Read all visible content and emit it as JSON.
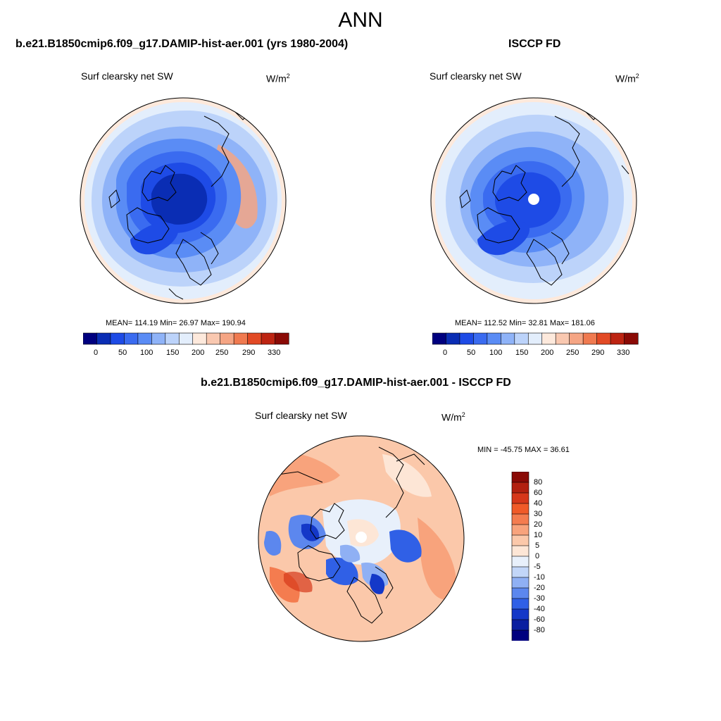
{
  "figure": {
    "title": "ANN"
  },
  "panels": [
    {
      "id": "model",
      "title": "b.e21.B1850cmip6.f09_g17.DAMIP-hist-aer.001 (yrs 1980-2004)",
      "variable": "Surf clearsky net SW",
      "units_base": "W/m",
      "units_exp": "2",
      "stats_text": "MEAN= 114.19  Min=  26.97  Max= 190.94",
      "colorbar_labels": [
        "0",
        "50",
        "100",
        "150",
        "200",
        "250",
        "290",
        "330"
      ],
      "colors": [
        "#00007f",
        "#0a2db4",
        "#1e4be6",
        "#3a6bf0",
        "#5a8cf5",
        "#8fb3f8",
        "#bcd3fa",
        "#e3eefc",
        "#fde9dc",
        "#f9c8b0",
        "#f5a584",
        "#f07a50",
        "#e24a25",
        "#bd2412",
        "#8a0a05"
      ]
    },
    {
      "id": "obs",
      "title": "ISCCP FD",
      "variable": "Surf clearsky net SW",
      "units_base": "W/m",
      "units_exp": "2",
      "stats_text": "MEAN= 112.52  Min=  32.81  Max= 181.06",
      "colorbar_labels": [
        "0",
        "50",
        "100",
        "150",
        "200",
        "250",
        "290",
        "330"
      ],
      "colors": [
        "#00007f",
        "#0a2db4",
        "#1e4be6",
        "#3a6bf0",
        "#5a8cf5",
        "#8fb3f8",
        "#bcd3fa",
        "#e3eefc",
        "#fde9dc",
        "#f9c8b0",
        "#f5a584",
        "#f07a50",
        "#e24a25",
        "#bd2412",
        "#8a0a05"
      ]
    },
    {
      "id": "diff",
      "title": "b.e21.B1850cmip6.f09_g17.DAMIP-hist-aer.001 - ISCCP FD",
      "variable": "Surf clearsky net SW",
      "units_base": "W/m",
      "units_exp": "2",
      "stats_text": "MIN = -45.75 MAX =  36.61",
      "colorbar_labels": [
        "80",
        "60",
        "40",
        "30",
        "20",
        "10",
        "5",
        "0",
        "-5",
        "-10",
        "-20",
        "-30",
        "-40",
        "-60",
        "-80"
      ],
      "colors": [
        "#8a0a05",
        "#b2200f",
        "#d6371a",
        "#f05a28",
        "#f47c4f",
        "#f8a37c",
        "#fbc8aa",
        "#fde6d6",
        "#e8f0fb",
        "#c2d6f8",
        "#8fb0f4",
        "#5c87ee",
        "#3060e6",
        "#1438c8",
        "#0a1fa0",
        "#00007f"
      ]
    }
  ]
}
